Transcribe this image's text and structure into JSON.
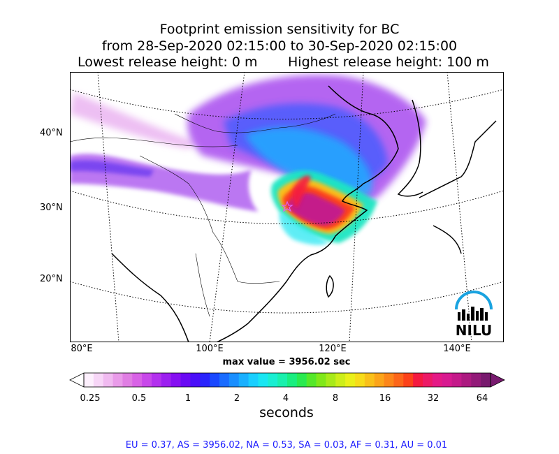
{
  "titles": {
    "line1": "Footprint emission sensitivity for BC",
    "line2": "from 28-Sep-2020 02:15:00 to 30-Sep-2020 02:15:00",
    "line3_left": "Lowest release height: 0 m",
    "line3_right": "Highest release height: 100 m"
  },
  "map": {
    "lat_labels": [
      "40°N",
      "30°N",
      "20°N"
    ],
    "lon_labels": [
      "80°E",
      "100°E",
      "120°E",
      "140°E"
    ],
    "max_value": "max value = 3956.02 sec",
    "logo_text": "NILU",
    "logo_color": "#1aa3e0"
  },
  "colorbar": {
    "tick_labels": [
      "0.25",
      "0.5",
      "1",
      "2",
      "4",
      "8",
      "16",
      "32",
      "64"
    ],
    "label": "seconds",
    "colors": [
      "#fdf0fd",
      "#f7d6f7",
      "#f0baf0",
      "#e99be9",
      "#e07ee3",
      "#d862e6",
      "#c848ea",
      "#b331ee",
      "#9c20f0",
      "#8610f2",
      "#6a0af4",
      "#4a0ef8",
      "#2a24fc",
      "#1a48ff",
      "#1a6cff",
      "#1a8fff",
      "#1ab0ff",
      "#1acfff",
      "#1ae6f2",
      "#1aeed2",
      "#1af0ad",
      "#1aee80",
      "#2aea50",
      "#55e82a",
      "#80e81a",
      "#a8ea1a",
      "#cdee1a",
      "#eaf01a",
      "#f7dc1a",
      "#f9c01a",
      "#fba41a",
      "#fc861a",
      "#fc661a",
      "#fc421a",
      "#f41a40",
      "#ec1a66",
      "#e41a86",
      "#d81a90",
      "#c41a8a",
      "#ac1a80",
      "#921a78",
      "#781a6e"
    ]
  },
  "footer": "EU = 0.37,  AS = 3956.02,  NA = 0.53,  SA = 0.03,  AF = 0.31,  AU = 0.01"
}
